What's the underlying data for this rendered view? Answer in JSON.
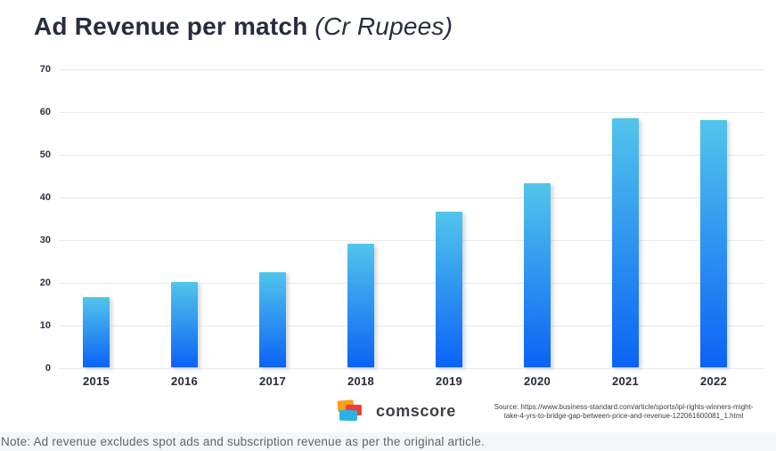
{
  "title": {
    "main": "Ad Revenue per match",
    "unit": "(Cr Rupees)"
  },
  "chart_data": {
    "type": "bar",
    "title": "Ad Revenue per match (Cr Rupees)",
    "categories": [
      "2015",
      "2016",
      "2017",
      "2018",
      "2019",
      "2020",
      "2021",
      "2022"
    ],
    "values": [
      16.5,
      20,
      22.2,
      29,
      36.5,
      43.1,
      58.3,
      58
    ],
    "xlabel": "",
    "ylabel": "",
    "ylim": [
      0,
      70
    ],
    "yticks": [
      0,
      10,
      20,
      30,
      40,
      50,
      60,
      70
    ],
    "grid": true,
    "legend": "none",
    "bar_gradient_top": "#52c5ec",
    "bar_gradient_bottom": "#0b63f5"
  },
  "footer": {
    "brand_name": "comscore",
    "source_line1": "Source: https://www.business-standard.com/article/sports/ipl-rights-winners-might-",
    "source_line2": "take-4-yrs-to-bridge-gap-between-price-and-revenue-122061600081_1.html"
  },
  "note": "Note: Ad revenue excludes spot ads and subscription revenue as per the original article.",
  "colors": {
    "title_text": "#262d3e",
    "axis_text": "#2b3343",
    "gridline": "#e8eaef",
    "note_bg": "#f5f6f7",
    "note_text": "#5c6670",
    "logo_orange": "#f9a01b",
    "logo_red": "#ee3e36",
    "logo_cyan": "#2bb3e6"
  }
}
